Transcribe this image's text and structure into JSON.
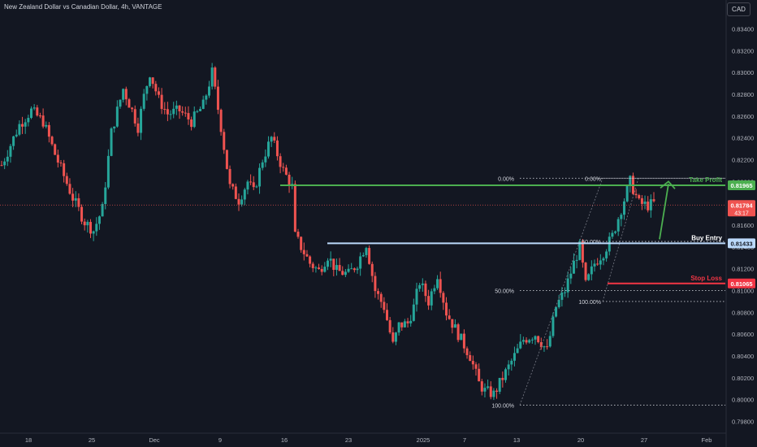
{
  "title": "New Zealand Dollar vs Canadian Dollar, 4h, VANTAGE",
  "currency_button": "CAD",
  "colors": {
    "background": "#131722",
    "up": "#26a69a",
    "down": "#ef5350",
    "take_profit": "#4caf50",
    "buy_entry": "#bbd9fb",
    "stop_loss": "#f23645",
    "axis_text": "#b2b5be",
    "dotted": "#c3c6ce"
  },
  "chart_data": {
    "type": "candlestick",
    "symbol": "NZDCAD",
    "timeframe": "4h",
    "y_axis": {
      "min": 0.797,
      "max": 0.835,
      "ticks": [
        "0.83400",
        "0.83200",
        "0.83000",
        "0.82800",
        "0.82600",
        "0.82400",
        "0.82200",
        "0.82000",
        "0.81800",
        "0.81600",
        "0.81400",
        "0.81200",
        "0.81000",
        "0.80800",
        "0.80600",
        "0.80400",
        "0.80200",
        "0.80000",
        "0.79800"
      ]
    },
    "x_axis": {
      "labels": [
        "18",
        "25",
        "Dec",
        "9",
        "16",
        "23",
        "2025",
        "7",
        "13",
        "20",
        "27",
        "Feb"
      ]
    },
    "price_path_anchors": [
      [
        0,
        0.8215
      ],
      [
        6,
        0.8252
      ],
      [
        10,
        0.8265
      ],
      [
        14,
        0.8255
      ],
      [
        18,
        0.8225
      ],
      [
        24,
        0.8185
      ],
      [
        28,
        0.8163
      ],
      [
        31,
        0.8155
      ],
      [
        34,
        0.8175
      ],
      [
        37,
        0.8245
      ],
      [
        41,
        0.8285
      ],
      [
        44,
        0.8265
      ],
      [
        46,
        0.825
      ],
      [
        48,
        0.8278
      ],
      [
        50,
        0.83
      ],
      [
        53,
        0.8275
      ],
      [
        56,
        0.8262
      ],
      [
        60,
        0.8265
      ],
      [
        64,
        0.8255
      ],
      [
        68,
        0.827
      ],
      [
        71,
        0.83
      ],
      [
        74,
        0.825
      ],
      [
        77,
        0.8195
      ],
      [
        80,
        0.8183
      ],
      [
        83,
        0.82
      ],
      [
        85,
        0.819
      ],
      [
        88,
        0.822
      ],
      [
        91,
        0.824
      ],
      [
        95,
        0.821
      ],
      [
        98,
        0.8195
      ],
      [
        99,
        0.815
      ],
      [
        101,
        0.814
      ],
      [
        104,
        0.8125
      ],
      [
        107,
        0.8118
      ],
      [
        110,
        0.8132
      ],
      [
        113,
        0.8118
      ],
      [
        117,
        0.8115
      ],
      [
        120,
        0.8125
      ],
      [
        123,
        0.8143
      ],
      [
        126,
        0.81
      ],
      [
        129,
        0.8085
      ],
      [
        132,
        0.805
      ],
      [
        134,
        0.8068
      ],
      [
        137,
        0.807
      ],
      [
        139,
        0.8085
      ],
      [
        141,
        0.8108
      ],
      [
        144,
        0.809
      ],
      [
        147,
        0.8115
      ],
      [
        150,
        0.808
      ],
      [
        154,
        0.806
      ],
      [
        158,
        0.804
      ],
      [
        161,
        0.8015
      ],
      [
        163,
        0.8008
      ],
      [
        166,
        0.8005
      ],
      [
        168,
        0.8015
      ],
      [
        172,
        0.8035
      ],
      [
        176,
        0.8055
      ],
      [
        180,
        0.806
      ],
      [
        184,
        0.8045
      ],
      [
        187,
        0.8085
      ],
      [
        190,
        0.81
      ],
      [
        193,
        0.8125
      ],
      [
        195,
        0.814
      ],
      [
        197,
        0.8105
      ],
      [
        200,
        0.8125
      ],
      [
        203,
        0.8135
      ],
      [
        206,
        0.815
      ],
      [
        209,
        0.8175
      ],
      [
        212,
        0.82
      ],
      [
        215,
        0.818
      ],
      [
        218,
        0.8178
      ],
      [
        220,
        0.818
      ]
    ],
    "levels": [
      {
        "name": "Take Profit",
        "value": 0.81965,
        "label": "Take Profit",
        "price_tag": "0.81965"
      },
      {
        "name": "Buy Entry",
        "value": 0.81433,
        "label": "Buy Entry",
        "price_tag": "0.81433"
      },
      {
        "name": "Stop Loss",
        "value": 0.81065,
        "label": "Stop Loss",
        "price_tag": "0.81065"
      }
    ],
    "current_price": {
      "value": 0.81784,
      "label": "0.81784",
      "countdown": "43:17"
    },
    "fibonacci": [
      {
        "labels": [
          "0.00%",
          "50.00%",
          "100.00%"
        ],
        "values": [
          0.8203,
          0.81,
          0.7995
        ]
      },
      {
        "labels": [
          "0.00%",
          "50.00%",
          "100.00%"
        ],
        "values": [
          0.8203,
          0.8145,
          0.809
        ]
      }
    ],
    "annotations": [
      "Take Profit",
      "Buy Entry",
      "Stop Loss"
    ]
  }
}
